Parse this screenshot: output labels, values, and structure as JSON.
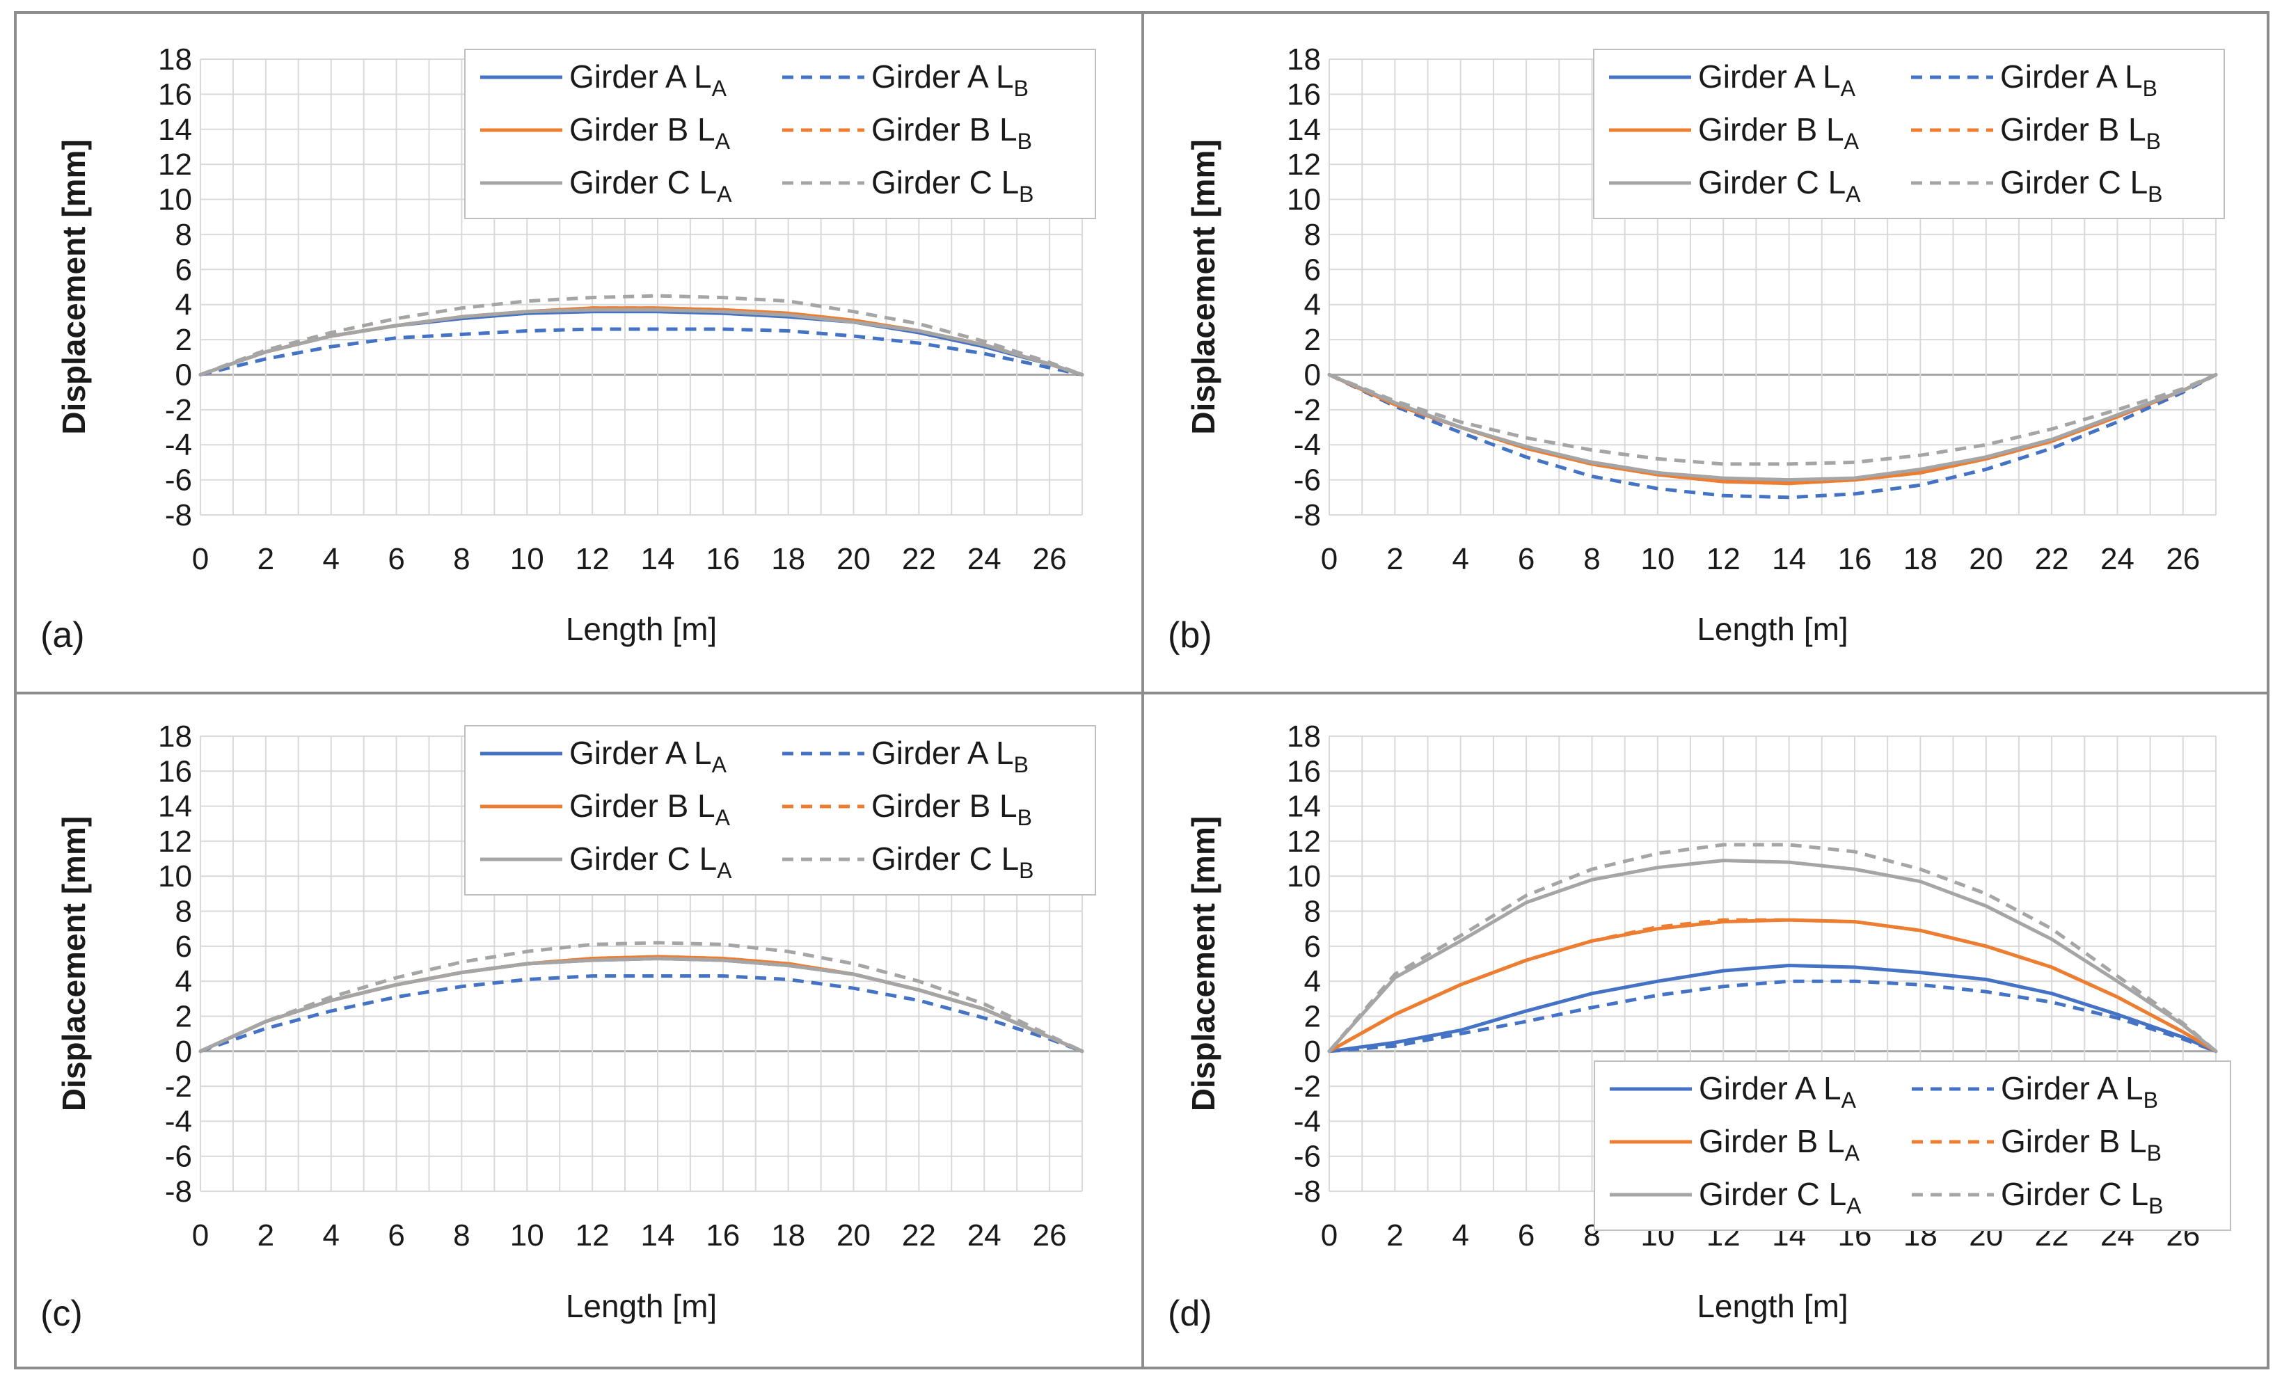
{
  "colors": {
    "girder_a": "#4472c4",
    "girder_b": "#ed7d31",
    "girder_c": "#a5a5a5",
    "grid": "#d9d9d9",
    "zero_line": "#a6a6a6",
    "frame": "#8c8c8c",
    "text": "#1a1a1a"
  },
  "legend_entries": [
    {
      "series_key": "A_LA",
      "name": "Girder A",
      "sub": "A",
      "style": "solid",
      "color_key": "girder_a"
    },
    {
      "series_key": "A_LB",
      "name": "Girder A",
      "sub": "B",
      "style": "dashed",
      "color_key": "girder_a"
    },
    {
      "series_key": "B_LA",
      "name": "Girder B",
      "sub": "A",
      "style": "solid",
      "color_key": "girder_b"
    },
    {
      "series_key": "B_LB",
      "name": "Girder B",
      "sub": "B",
      "style": "dashed",
      "color_key": "girder_b"
    },
    {
      "series_key": "C_LA",
      "name": "Girder C",
      "sub": "A",
      "style": "solid",
      "color_key": "girder_c"
    },
    {
      "series_key": "C_LB",
      "name": "Girder C",
      "sub": "B",
      "style": "dashed",
      "color_key": "girder_c"
    }
  ],
  "legend_letter": "L",
  "chart_data": [
    {
      "panel_label": "(a)",
      "type": "line",
      "xlabel": "Length [m]",
      "ylabel": "Displacement [mm]",
      "xlim": [
        0,
        27
      ],
      "ylim": [
        -8,
        18
      ],
      "xticks": [
        0,
        2,
        4,
        6,
        8,
        10,
        12,
        14,
        16,
        18,
        20,
        22,
        24,
        26
      ],
      "yticks": [
        -8,
        -6,
        -4,
        -2,
        0,
        2,
        4,
        6,
        8,
        10,
        12,
        14,
        16,
        18
      ],
      "grid": true,
      "legend_position": "top-right",
      "x": [
        0,
        2,
        4,
        6,
        8,
        10,
        12,
        14,
        16,
        18,
        20,
        22,
        24,
        26,
        27
      ],
      "series": [
        {
          "key": "A_LA",
          "values": [
            0,
            1.3,
            2.2,
            2.8,
            3.2,
            3.5,
            3.6,
            3.6,
            3.5,
            3.3,
            3.0,
            2.4,
            1.6,
            0.6,
            0
          ]
        },
        {
          "key": "A_LB",
          "values": [
            0,
            0.9,
            1.6,
            2.1,
            2.3,
            2.5,
            2.6,
            2.6,
            2.6,
            2.5,
            2.2,
            1.8,
            1.2,
            0.4,
            0
          ]
        },
        {
          "key": "B_LA",
          "values": [
            0,
            1.3,
            2.2,
            2.8,
            3.3,
            3.6,
            3.8,
            3.8,
            3.7,
            3.5,
            3.1,
            2.5,
            1.7,
            0.6,
            0
          ]
        },
        {
          "key": "B_LB",
          "values": [
            0,
            1.3,
            2.2,
            2.8,
            3.3,
            3.6,
            3.8,
            3.8,
            3.7,
            3.5,
            3.1,
            2.5,
            1.7,
            0.6,
            0
          ]
        },
        {
          "key": "C_LA",
          "values": [
            0,
            1.3,
            2.2,
            2.8,
            3.3,
            3.6,
            3.7,
            3.7,
            3.6,
            3.4,
            3.0,
            2.5,
            1.7,
            0.6,
            0
          ]
        },
        {
          "key": "C_LB",
          "values": [
            0,
            1.4,
            2.4,
            3.2,
            3.8,
            4.2,
            4.4,
            4.5,
            4.4,
            4.2,
            3.6,
            2.9,
            1.9,
            0.7,
            0
          ]
        }
      ]
    },
    {
      "panel_label": "(b)",
      "type": "line",
      "xlabel": "Length [m]",
      "ylabel": "Displacement [mm]",
      "xlim": [
        0,
        27
      ],
      "ylim": [
        -8,
        18
      ],
      "xticks": [
        0,
        2,
        4,
        6,
        8,
        10,
        12,
        14,
        16,
        18,
        20,
        22,
        24,
        26
      ],
      "yticks": [
        -8,
        -6,
        -4,
        -2,
        0,
        2,
        4,
        6,
        8,
        10,
        12,
        14,
        16,
        18
      ],
      "grid": true,
      "legend_position": "top-right",
      "x": [
        0,
        2,
        4,
        6,
        8,
        10,
        12,
        14,
        16,
        18,
        20,
        22,
        24,
        26,
        27
      ],
      "series": [
        {
          "key": "A_LA",
          "values": [
            0,
            -1.7,
            -3.0,
            -4.2,
            -5.0,
            -5.6,
            -6.0,
            -6.1,
            -6.0,
            -5.5,
            -4.7,
            -3.7,
            -2.4,
            -0.9,
            0
          ]
        },
        {
          "key": "A_LB",
          "values": [
            0,
            -1.8,
            -3.3,
            -4.7,
            -5.8,
            -6.5,
            -6.9,
            -7.0,
            -6.8,
            -6.3,
            -5.4,
            -4.2,
            -2.7,
            -1.0,
            0
          ]
        },
        {
          "key": "B_LA",
          "values": [
            0,
            -1.7,
            -3.0,
            -4.2,
            -5.1,
            -5.7,
            -6.1,
            -6.2,
            -6.0,
            -5.6,
            -4.8,
            -3.8,
            -2.4,
            -0.9,
            0
          ]
        },
        {
          "key": "B_LB",
          "values": [
            0,
            -1.7,
            -3.0,
            -4.2,
            -5.1,
            -5.7,
            -6.1,
            -6.2,
            -6.0,
            -5.6,
            -4.8,
            -3.8,
            -2.4,
            -0.9,
            0
          ]
        },
        {
          "key": "C_LA",
          "values": [
            0,
            -1.6,
            -3.0,
            -4.1,
            -5.0,
            -5.6,
            -5.9,
            -6.0,
            -5.9,
            -5.4,
            -4.7,
            -3.7,
            -2.3,
            -0.9,
            0
          ]
        },
        {
          "key": "C_LB",
          "values": [
            0,
            -1.5,
            -2.7,
            -3.6,
            -4.3,
            -4.8,
            -5.1,
            -5.1,
            -5.0,
            -4.6,
            -4.0,
            -3.1,
            -2.0,
            -0.8,
            0
          ]
        }
      ]
    },
    {
      "panel_label": "(c)",
      "type": "line",
      "xlabel": "Length [m]",
      "ylabel": "Displacement [mm]",
      "xlim": [
        0,
        27
      ],
      "ylim": [
        -8,
        18
      ],
      "xticks": [
        0,
        2,
        4,
        6,
        8,
        10,
        12,
        14,
        16,
        18,
        20,
        22,
        24,
        26
      ],
      "yticks": [
        -8,
        -6,
        -4,
        -2,
        0,
        2,
        4,
        6,
        8,
        10,
        12,
        14,
        16,
        18
      ],
      "grid": true,
      "legend_position": "top-right",
      "x": [
        0,
        2,
        4,
        6,
        8,
        10,
        12,
        14,
        16,
        18,
        20,
        22,
        24,
        26,
        27
      ],
      "series": [
        {
          "key": "A_LA",
          "values": [
            0,
            1.7,
            2.9,
            3.8,
            4.5,
            5.0,
            5.2,
            5.3,
            5.2,
            4.9,
            4.4,
            3.5,
            2.4,
            0.8,
            0
          ]
        },
        {
          "key": "A_LB",
          "values": [
            0,
            1.3,
            2.3,
            3.1,
            3.7,
            4.1,
            4.3,
            4.3,
            4.3,
            4.1,
            3.6,
            2.9,
            1.9,
            0.7,
            0
          ]
        },
        {
          "key": "B_LA",
          "values": [
            0,
            1.7,
            2.9,
            3.8,
            4.5,
            5.0,
            5.3,
            5.4,
            5.3,
            5.0,
            4.4,
            3.5,
            2.4,
            0.8,
            0
          ]
        },
        {
          "key": "B_LB",
          "values": [
            0,
            1.7,
            2.9,
            3.8,
            4.5,
            5.0,
            5.3,
            5.4,
            5.3,
            5.0,
            4.4,
            3.5,
            2.4,
            0.8,
            0
          ]
        },
        {
          "key": "C_LA",
          "values": [
            0,
            1.7,
            2.9,
            3.8,
            4.5,
            5.0,
            5.2,
            5.3,
            5.2,
            4.9,
            4.4,
            3.5,
            2.4,
            0.8,
            0
          ]
        },
        {
          "key": "C_LB",
          "values": [
            0,
            1.7,
            3.1,
            4.2,
            5.1,
            5.7,
            6.1,
            6.2,
            6.1,
            5.7,
            5.0,
            4.0,
            2.7,
            0.9,
            0
          ]
        }
      ]
    },
    {
      "panel_label": "(d)",
      "type": "line",
      "xlabel": "Length [m]",
      "ylabel": "Displacement [mm]",
      "xlim": [
        0,
        27
      ],
      "ylim": [
        -8,
        18
      ],
      "xticks": [
        0,
        2,
        4,
        6,
        8,
        10,
        12,
        14,
        16,
        18,
        20,
        22,
        24,
        26
      ],
      "yticks": [
        -8,
        -6,
        -4,
        -2,
        0,
        2,
        4,
        6,
        8,
        10,
        12,
        14,
        16,
        18
      ],
      "grid": true,
      "legend_position": "bottom-right",
      "x": [
        0,
        2,
        4,
        6,
        8,
        10,
        12,
        14,
        16,
        18,
        20,
        22,
        24,
        26,
        27
      ],
      "series": [
        {
          "key": "A_LA",
          "values": [
            0,
            0.5,
            1.2,
            2.3,
            3.3,
            4.0,
            4.6,
            4.9,
            4.8,
            4.5,
            4.1,
            3.3,
            2.1,
            0.8,
            0
          ]
        },
        {
          "key": "A_LB",
          "values": [
            0,
            0.3,
            1.0,
            1.7,
            2.5,
            3.2,
            3.7,
            4.0,
            4.0,
            3.8,
            3.4,
            2.8,
            1.9,
            0.7,
            0
          ]
        },
        {
          "key": "B_LA",
          "values": [
            0,
            2.1,
            3.8,
            5.2,
            6.3,
            7.0,
            7.4,
            7.5,
            7.4,
            6.9,
            6.0,
            4.8,
            3.1,
            1.1,
            0
          ]
        },
        {
          "key": "B_LB",
          "values": [
            0,
            2.1,
            3.8,
            5.2,
            6.3,
            7.1,
            7.5,
            7.5,
            7.4,
            6.9,
            6.0,
            4.8,
            3.1,
            1.1,
            0
          ]
        },
        {
          "key": "C_LA",
          "values": [
            0,
            4.2,
            6.3,
            8.5,
            9.8,
            10.5,
            10.9,
            10.8,
            10.4,
            9.7,
            8.3,
            6.4,
            4.0,
            1.5,
            0
          ]
        },
        {
          "key": "C_LB",
          "values": [
            0,
            4.4,
            6.6,
            8.9,
            10.4,
            11.3,
            11.8,
            11.8,
            11.4,
            10.4,
            9.0,
            7.0,
            4.3,
            1.6,
            0
          ]
        }
      ]
    }
  ]
}
